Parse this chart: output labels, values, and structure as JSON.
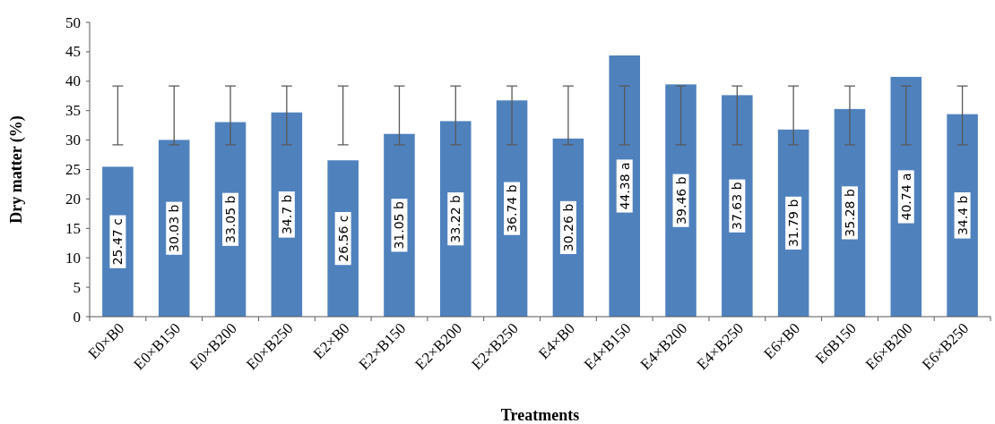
{
  "chart_data": {
    "type": "bar",
    "xlabel": "Treatments",
    "ylabel": "Dry matter (%)",
    "categories": [
      "E0×B0",
      "E0×B150",
      "E0×B200",
      "E0×B250",
      "E2×B0",
      "E2×B150",
      "E2×B200",
      "E2×B250",
      "E4×B0",
      "E4×B150",
      "E4×B200",
      "E4×B250",
      "E6×B0",
      "E6B150",
      "E6×B200",
      "E6×B250"
    ],
    "values": [
      25.47,
      30.03,
      33.05,
      34.7,
      26.56,
      31.05,
      33.22,
      36.74,
      30.26,
      44.38,
      39.46,
      37.63,
      31.79,
      35.28,
      40.74,
      34.4
    ],
    "value_labels": [
      "25.47 c",
      "30.03 b",
      "33.05 b",
      "34.7 b",
      "26.56 c",
      "31.05 b",
      "33.22 b",
      "36.74 b",
      "30.26 b",
      "44.38 a",
      "39.46 b",
      "37.63 b",
      "31.79 b",
      "35.28 b",
      "40.74 a",
      "34.4 b"
    ],
    "errors": [
      [
        29.2,
        39.2
      ],
      [
        29.2,
        39.2
      ],
      [
        29.2,
        39.2
      ],
      [
        29.2,
        39.2
      ],
      [
        29.2,
        39.2
      ],
      [
        29.2,
        39.2
      ],
      [
        29.2,
        39.2
      ],
      [
        29.2,
        39.2
      ],
      [
        29.2,
        39.2
      ],
      [
        29.2,
        39.2
      ],
      [
        29.2,
        39.2
      ],
      [
        29.2,
        39.2
      ],
      [
        29.2,
        39.2
      ],
      [
        29.2,
        39.2
      ],
      [
        29.2,
        39.2
      ],
      [
        29.2,
        39.2
      ]
    ],
    "color": "#4f81bd",
    "ylim": [
      0,
      50
    ],
    "yticks": [
      0,
      5,
      10,
      15,
      20,
      25,
      30,
      35,
      40,
      45,
      50
    ],
    "grid": false
  }
}
